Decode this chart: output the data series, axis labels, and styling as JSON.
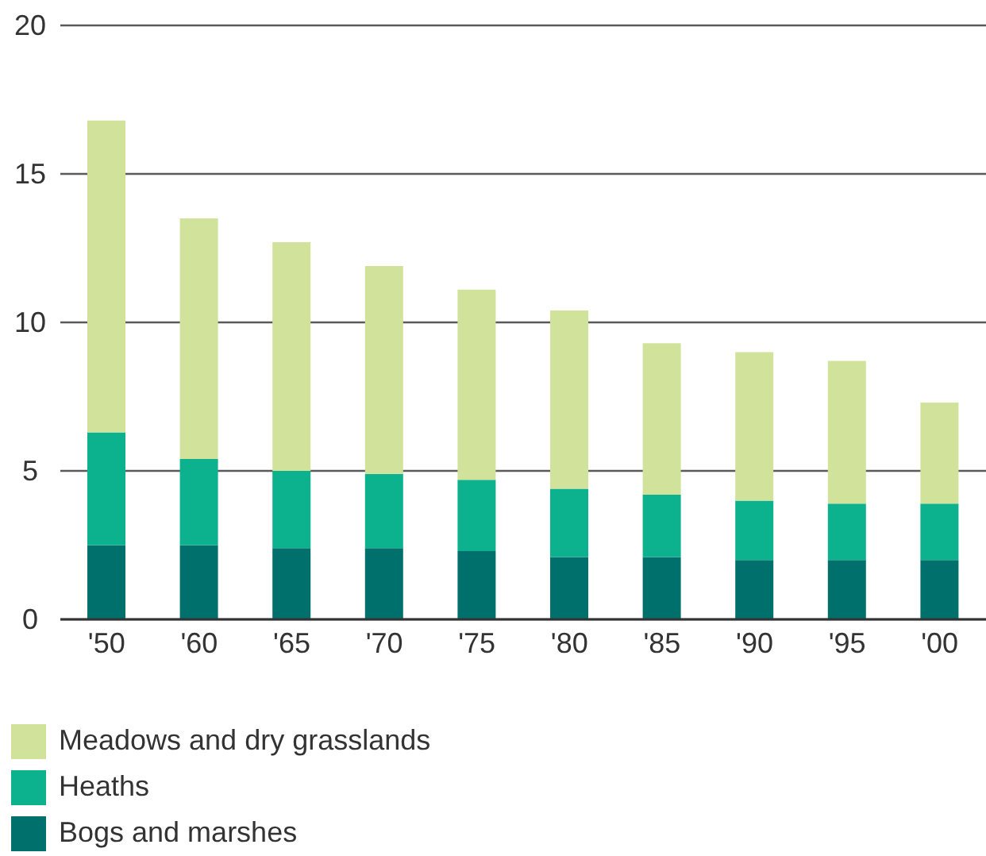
{
  "chart_data": {
    "type": "bar",
    "categories": [
      "'50",
      "'60",
      "'65",
      "'70",
      "'75",
      "'80",
      "'85",
      "'90",
      "'95",
      "'00"
    ],
    "series": [
      {
        "name": "Bogs and marshes",
        "color": "#00706d",
        "values": [
          2.5,
          2.5,
          2.4,
          2.4,
          2.3,
          2.1,
          2.1,
          2.0,
          2.0,
          2.0
        ]
      },
      {
        "name": "Heaths",
        "color": "#0cb18d",
        "values": [
          3.8,
          2.9,
          2.6,
          2.5,
          2.4,
          2.3,
          2.1,
          2.0,
          1.9,
          1.9
        ]
      },
      {
        "name": "Meadows and dry grasslands",
        "color": "#d1e39b",
        "values": [
          10.5,
          8.1,
          7.7,
          7.0,
          6.4,
          6.0,
          5.1,
          5.0,
          4.8,
          3.4
        ]
      }
    ],
    "stacked": true,
    "ylim": [
      0,
      20
    ],
    "yticks": [
      0,
      5,
      10,
      15,
      20
    ],
    "grid": "y",
    "legend": "bottom left"
  }
}
